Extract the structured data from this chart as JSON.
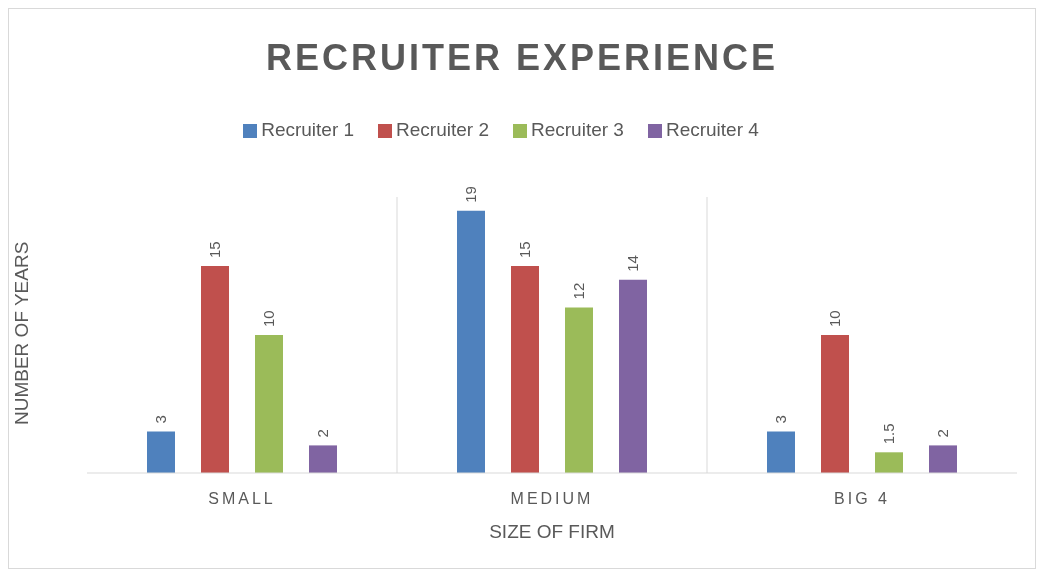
{
  "chart_data": {
    "type": "bar",
    "title": "RECRUITER EXPERIENCE",
    "xlabel": "SIZE OF FIRM",
    "ylabel": "NUMBER OF YEARS",
    "categories": [
      "SMALL",
      "MEDIUM",
      "BIG 4"
    ],
    "series": [
      {
        "name": "Recruiter 1",
        "color": "#4f81bd",
        "values": [
          3,
          19,
          3
        ]
      },
      {
        "name": "Recruiter 2",
        "color": "#c0504d",
        "values": [
          15,
          15,
          10
        ]
      },
      {
        "name": "Recruiter 3",
        "color": "#9bbb59",
        "values": [
          10,
          12,
          1.5
        ]
      },
      {
        "name": "Recruiter 4",
        "color": "#8064a2",
        "values": [
          2,
          14,
          2
        ]
      }
    ],
    "relative": false,
    "ylim": [
      0,
      20
    ],
    "data_labels": true,
    "grid": "x",
    "legend": "top"
  }
}
